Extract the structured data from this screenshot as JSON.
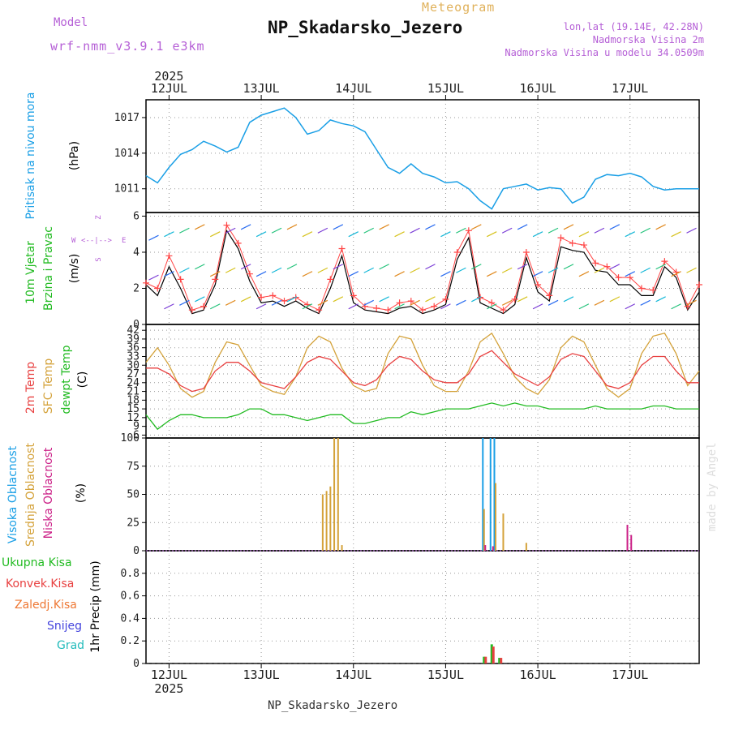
{
  "header": {
    "model_label": "Model",
    "model_name": "wrf-nmm_v3.9.1 e3km",
    "meteogram_label": "Meteogram",
    "station_title": "NP_Skadarsko_Jezero",
    "lonlat": "lon,lat (19.14E, 42.28N)",
    "elevation": "Nadmorska Visina 2m",
    "model_elevation": "Nadmorska Visina u modelu 34.0509m"
  },
  "footer": {
    "station": "NP_Skadarsko_Jezero",
    "watermark": "made by Angel"
  },
  "time_axis": {
    "year": "2025",
    "days": [
      "12JUL",
      "13JUL",
      "14JUL",
      "15JUL",
      "16JUL",
      "17JUL"
    ],
    "range_hours": [
      -6,
      138
    ],
    "day_positions_hours": [
      0,
      24,
      48,
      72,
      96,
      120
    ]
  },
  "colors": {
    "pressure": "#1a9fe6",
    "wind_speed": "#000000",
    "wind_gust": "#ff4444",
    "temp2m": "#e84040",
    "sfc_temp": "#d4a23a",
    "dewpoint": "#22bb22",
    "high_cloud": "#1a9fe6",
    "mid_cloud": "#d4a23a",
    "low_cloud": "#cc2288",
    "rain_total": "#22bb22",
    "rain_conv": "#e84040",
    "rain_frozen": "#ee7733",
    "snow": "#4444dd",
    "hail": "#22bbbb"
  },
  "panels": {
    "pressure": {
      "ylabel": "Pritisak na nivou mora",
      "unit": "(hPa)"
    },
    "wind": {
      "ylabel_1": "10m Vjetar",
      "ylabel_2": "Brzina i Pravac",
      "unit": "(m/s)",
      "compass": [
        "Z",
        "W",
        "E",
        "S"
      ],
      "compass_mid": "<--|-->"
    },
    "temp": {
      "ylabel_1": "2m Temp",
      "ylabel_2": "SFC Temp",
      "ylabel_3": "dewpt Temp",
      "unit": "(C)"
    },
    "cloud": {
      "ylabel_1": "Visoka Oblacnost",
      "ylabel_2": "Srednja Oblacnost",
      "ylabel_3": "Niska Oblacnost",
      "unit": "(%)"
    },
    "precip": {
      "legend": [
        "Ukupna Kisa",
        "Konvek.Kisa",
        "Zaledj.Kisa",
        "Snijeg",
        "Grad"
      ],
      "ylabel": "1hr Precip (mm)"
    }
  },
  "chart_data": [
    {
      "type": "line",
      "title": "Pritisak na nivou mora",
      "ylabel": "(hPa)",
      "ylim": [
        1009,
        1018.5
      ],
      "yticks": [
        "1011",
        "1014",
        "1017"
      ],
      "x_hours": [
        -6,
        -3,
        0,
        3,
        6,
        9,
        12,
        15,
        18,
        21,
        24,
        27,
        30,
        33,
        36,
        39,
        42,
        45,
        48,
        51,
        54,
        57,
        60,
        63,
        66,
        69,
        72,
        75,
        78,
        81,
        84,
        87,
        90,
        93,
        96,
        99,
        102,
        105,
        108,
        111,
        114,
        117,
        120,
        123,
        126,
        129,
        132,
        135,
        138
      ],
      "series": [
        {
          "name": "MSLP",
          "values": [
            1012.1,
            1011.5,
            1012.8,
            1013.9,
            1014.3,
            1015.0,
            1014.6,
            1014.1,
            1014.5,
            1016.6,
            1017.2,
            1017.5,
            1017.8,
            1017.0,
            1015.6,
            1015.9,
            1016.8,
            1016.5,
            1016.3,
            1015.8,
            1014.3,
            1012.8,
            1012.3,
            1013.1,
            1012.3,
            1012.0,
            1011.5,
            1011.6,
            1011.0,
            1010.0,
            1009.3,
            1011.0,
            1011.2,
            1011.4,
            1010.9,
            1011.1,
            1011.0,
            1009.8,
            1010.3,
            1011.8,
            1012.2,
            1012.1,
            1012.3,
            1012.0,
            1011.2,
            1010.9,
            1011.0,
            1011.0,
            1011.0
          ]
        }
      ]
    },
    {
      "type": "line",
      "title": "10m Vjetar Brzina i Pravac",
      "ylabel": "(m/s)",
      "ylim": [
        0,
        6.2
      ],
      "yticks": [
        "0",
        "2",
        "4",
        "6"
      ],
      "x_hours": [
        -6,
        -3,
        0,
        3,
        6,
        9,
        12,
        15,
        18,
        21,
        24,
        27,
        30,
        33,
        36,
        39,
        42,
        45,
        48,
        51,
        54,
        57,
        60,
        63,
        66,
        69,
        72,
        75,
        78,
        81,
        84,
        87,
        90,
        93,
        96,
        99,
        102,
        105,
        108,
        111,
        114,
        117,
        120,
        123,
        126,
        129,
        132,
        135,
        138
      ],
      "series": [
        {
          "name": "Wind speed",
          "values": [
            2.2,
            1.6,
            3.2,
            2.0,
            0.6,
            0.8,
            2.2,
            5.2,
            4.2,
            2.4,
            1.2,
            1.3,
            1.0,
            1.3,
            0.9,
            0.6,
            2.0,
            3.8,
            1.2,
            0.8,
            0.7,
            0.6,
            0.9,
            1.0,
            0.6,
            0.8,
            1.1,
            3.6,
            4.8,
            1.2,
            0.9,
            0.6,
            1.1,
            3.7,
            1.8,
            1.3,
            4.3,
            4.1,
            4.0,
            3.0,
            2.9,
            2.2,
            2.2,
            1.6,
            1.6,
            3.2,
            2.6,
            0.8,
            1.8
          ]
        },
        {
          "name": "Gust",
          "values": [
            2.3,
            2.0,
            3.8,
            2.5,
            0.8,
            1.0,
            2.5,
            5.5,
            4.5,
            2.8,
            1.5,
            1.6,
            1.3,
            1.5,
            1.1,
            0.8,
            2.5,
            4.2,
            1.6,
            1.0,
            0.9,
            0.8,
            1.2,
            1.3,
            0.8,
            1.0,
            1.4,
            4.0,
            5.2,
            1.5,
            1.2,
            0.8,
            1.4,
            4.0,
            2.2,
            1.6,
            4.8,
            4.5,
            4.4,
            3.4,
            3.2,
            2.6,
            2.6,
            2.0,
            1.9,
            3.5,
            2.9,
            1.0,
            2.2
          ]
        }
      ]
    },
    {
      "type": "line",
      "title": "Temperature",
      "ylabel": "(C)",
      "ylim": [
        5,
        44
      ],
      "yticks": [
        "6",
        "9",
        "12",
        "15",
        "18",
        "21",
        "24",
        "27",
        "30",
        "33",
        "36",
        "39",
        "42",
        "45"
      ],
      "x_hours": [
        -6,
        -3,
        0,
        3,
        6,
        9,
        12,
        15,
        18,
        21,
        24,
        27,
        30,
        33,
        36,
        39,
        42,
        45,
        48,
        51,
        54,
        57,
        60,
        63,
        66,
        69,
        72,
        75,
        78,
        81,
        84,
        87,
        90,
        93,
        96,
        99,
        102,
        105,
        108,
        111,
        114,
        117,
        120,
        123,
        126,
        129,
        132,
        135,
        138
      ],
      "series": [
        {
          "name": "2m Temp",
          "values": [
            29,
            29,
            27,
            23,
            21,
            22,
            28,
            31,
            31,
            28,
            24,
            23,
            22,
            26,
            31,
            33,
            32,
            28,
            24,
            23,
            25,
            30,
            33,
            32,
            28,
            25,
            24,
            24,
            27,
            33,
            35,
            31,
            27,
            25,
            23,
            26,
            32,
            34,
            33,
            28,
            23,
            22,
            24,
            30,
            33,
            33,
            28,
            24,
            24
          ]
        },
        {
          "name": "SFC Temp",
          "values": [
            31,
            36,
            30,
            22,
            19,
            21,
            31,
            38,
            37,
            30,
            23,
            21,
            20,
            26,
            36,
            40,
            38,
            29,
            23,
            21,
            22,
            34,
            40,
            39,
            30,
            23,
            21,
            21,
            28,
            38,
            41,
            34,
            26,
            22,
            20,
            25,
            36,
            40,
            38,
            30,
            22,
            19,
            22,
            34,
            40,
            41,
            34,
            23,
            28
          ]
        },
        {
          "name": "Dewpoint",
          "values": [
            13,
            8,
            11,
            13,
            13,
            12,
            12,
            12,
            13,
            15,
            15,
            13,
            13,
            12,
            11,
            12,
            13,
            13,
            10,
            10,
            11,
            12,
            12,
            14,
            13,
            14,
            15,
            15,
            15,
            16,
            17,
            16,
            17,
            16,
            16,
            15,
            15,
            15,
            15,
            16,
            15,
            15,
            15,
            15,
            16,
            16,
            15,
            15,
            15
          ]
        }
      ]
    },
    {
      "type": "bar",
      "title": "Oblacnost",
      "ylabel": "(%)",
      "ylim": [
        0,
        100
      ],
      "yticks": [
        "0",
        "25",
        "50",
        "75",
        "100"
      ],
      "series": [
        {
          "name": "Visoka Oblacnost",
          "x_hours": [
            82,
            83,
            84,
            85
          ],
          "values": [
            100,
            0,
            100,
            100
          ]
        },
        {
          "name": "Srednja Oblacnost",
          "x_hours": [
            40,
            41,
            42,
            43,
            44,
            45,
            82,
            85,
            87,
            93
          ],
          "values": [
            50,
            53,
            57,
            100,
            100,
            5,
            37,
            60,
            33,
            7
          ]
        },
        {
          "name": "Niska Oblacnost",
          "x_hours": [
            82,
            84,
            119,
            120
          ],
          "values": [
            5,
            4,
            23,
            14
          ]
        }
      ]
    },
    {
      "type": "bar",
      "title": "1hr Precip",
      "ylabel": "1hr Precip (mm)",
      "ylim": [
        0,
        1.0
      ],
      "yticks": [
        "0",
        "0.2",
        "0.4",
        "0.6",
        "0.8"
      ],
      "series": [
        {
          "name": "Ukupna Kisa",
          "x_hours": [
            82,
            84,
            86
          ],
          "values": [
            0.06,
            0.17,
            0.05
          ]
        },
        {
          "name": "Konvek.Kisa",
          "x_hours": [
            82,
            84,
            86
          ],
          "values": [
            0.06,
            0.15,
            0.05
          ]
        }
      ]
    }
  ]
}
